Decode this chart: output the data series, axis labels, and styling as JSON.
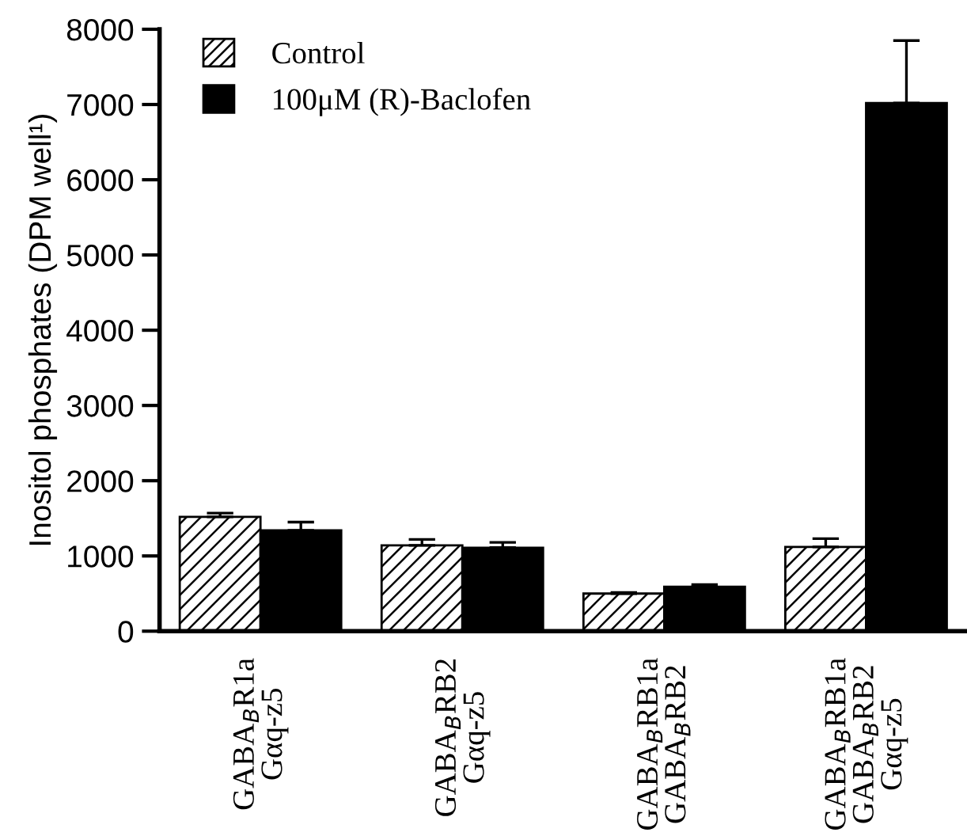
{
  "chart_data": {
    "type": "bar",
    "ylabel": "Inositol phosphates (DPM well¹)",
    "categories": [
      "GABA$_{B}$R1a\nGαq-z5",
      "GABA$_{B}$RB2\nGαq-z5",
      "GABA$_{B}$RB1a\nGABA$_{B}$RB2",
      "GABA$_{B}$RB1a\nGABA$_{B}$RB2\nGαq-z5"
    ],
    "series": [
      {
        "name": "Control",
        "color": "#ffffff",
        "values": [
          1520,
          1140,
          500,
          1120
        ],
        "errors": [
          [
            1520,
            1570
          ],
          [
            1140,
            1220
          ],
          [
            500,
            515
          ],
          [
            1120,
            1230
          ]
        ]
      },
      {
        "name": "100μM (R)-Baclofen",
        "color": "#000000",
        "values": [
          1340,
          1110,
          590,
          7020
        ],
        "errors": [
          [
            1340,
            1450
          ],
          [
            1110,
            1180
          ],
          [
            590,
            620
          ],
          [
            7020,
            7850
          ]
        ]
      }
    ],
    "ylim": [
      0,
      8000
    ],
    "yticks": [
      0,
      1000,
      2000,
      3000,
      4000,
      5000,
      6000,
      7000,
      8000
    ],
    "grid": false,
    "legend": "top left"
  }
}
